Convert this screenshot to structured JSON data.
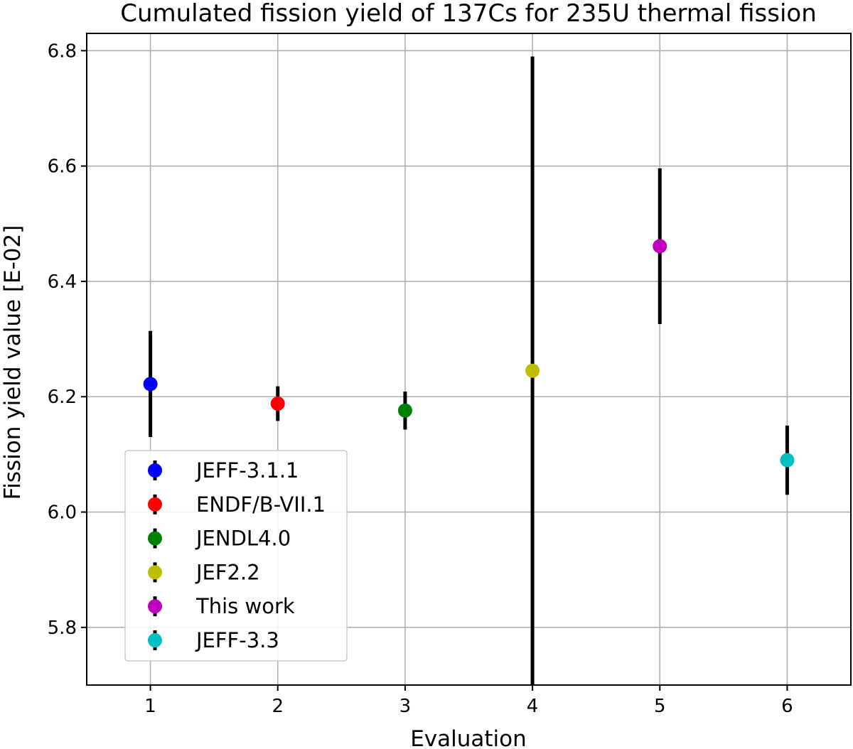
{
  "chart_data": {
    "type": "scatter",
    "title": "Cumulated fission yield of 137Cs for 235U thermal fission",
    "xlabel": "Evaluation",
    "ylabel": "Fission yield value [E-02]",
    "xlim": [
      0.5,
      6.5
    ],
    "ylim": [
      5.7,
      6.83
    ],
    "xticks": [
      1,
      2,
      3,
      4,
      5,
      6
    ],
    "yticks": [
      5.8,
      6.0,
      6.2,
      6.4,
      6.6,
      6.8
    ],
    "xtick_labels": [
      "1",
      "2",
      "3",
      "4",
      "5",
      "6"
    ],
    "ytick_labels": [
      "5.8",
      "6.0",
      "6.2",
      "6.4",
      "6.6",
      "6.8"
    ],
    "grid": true,
    "legend_position": "lower-left",
    "series": [
      {
        "name": "JEFF-3.1.1",
        "color": "#0000ff",
        "x": 1,
        "y": 6.222,
        "yerr": 0.092
      },
      {
        "name": "ENDF/B-VII.1",
        "color": "#ff0000",
        "x": 2,
        "y": 6.188,
        "yerr": 0.03
      },
      {
        "name": "JENDL4.0",
        "color": "#008000",
        "x": 3,
        "y": 6.176,
        "yerr": 0.033
      },
      {
        "name": "JEF2.2",
        "color": "#bfbf00",
        "x": 4,
        "y": 6.245,
        "yerr": 0.545
      },
      {
        "name": "This work",
        "color": "#bf00bf",
        "x": 5,
        "y": 6.461,
        "yerr": 0.135
      },
      {
        "name": "JEFF-3.3",
        "color": "#00bfbf",
        "x": 6,
        "y": 6.09,
        "yerr": 0.06
      }
    ]
  }
}
